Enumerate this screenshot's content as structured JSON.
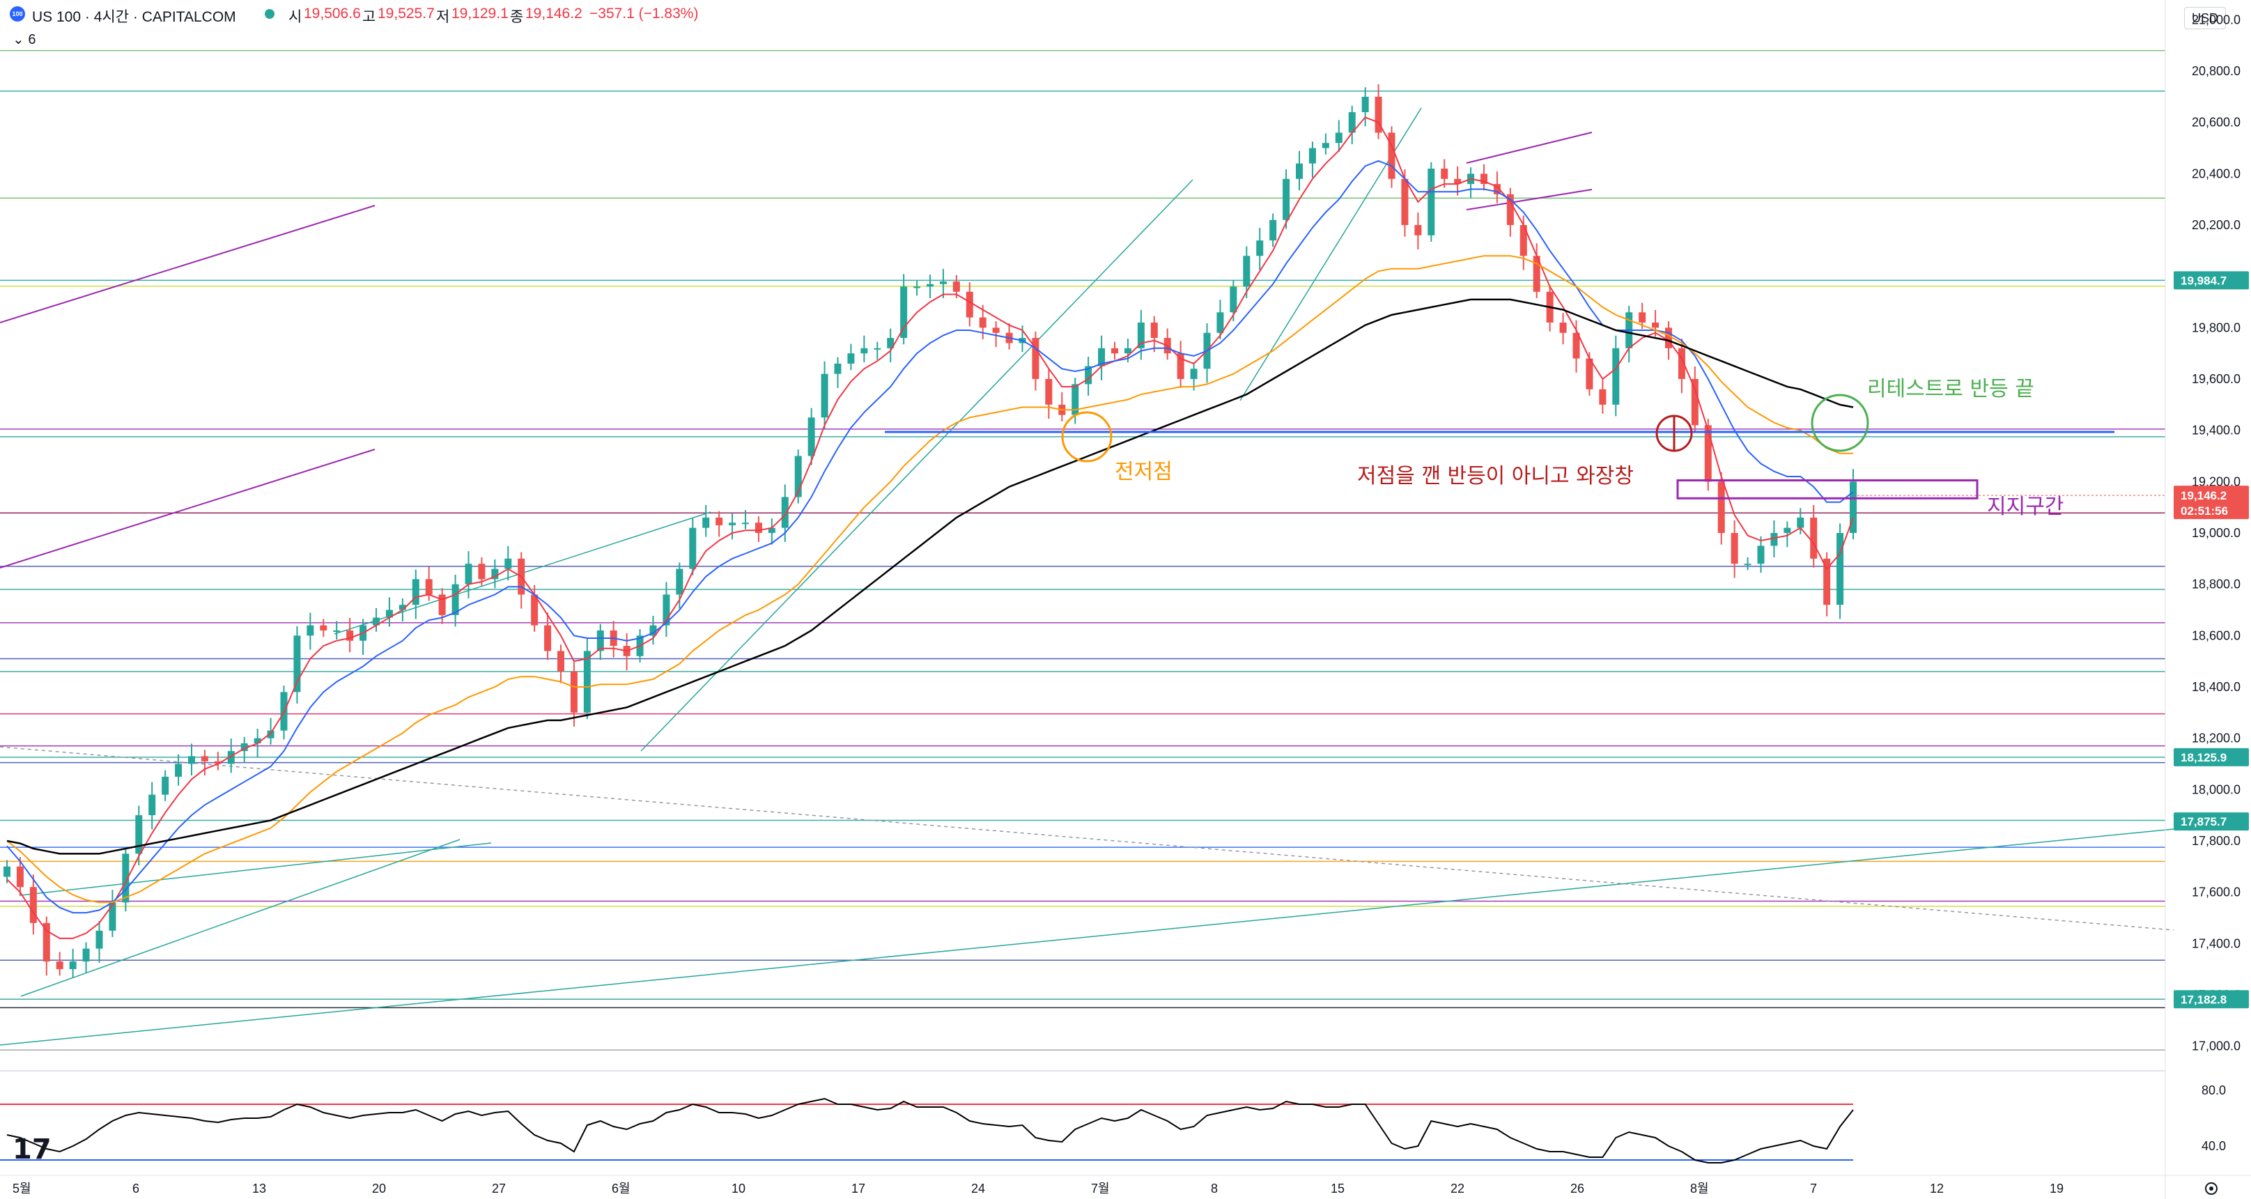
{
  "header": {
    "symbol": "US 100 · 4시간 · CAPITALCOM",
    "o_label": "시",
    "o_value": "19,506.6",
    "h_label": "고",
    "h_value": "19,525.7",
    "l_label": "저",
    "l_value": "19,129.1",
    "c_label": "종",
    "c_value": "19,146.2",
    "change": "−357.1 (−1.83%)",
    "badge": "100",
    "indicator_count": "6",
    "currency": "USD"
  },
  "colors": {
    "up": "#26a69a",
    "down": "#ef5350",
    "ema_fast": "#f23645",
    "ema_mid": "#2962ff",
    "ema_slow": "#ff9800",
    "ma_long": "#000000",
    "rsi": "#000000"
  },
  "chart_data": {
    "type": "candlestick",
    "ylim": [
      16950,
      21050
    ],
    "yticks": [
      17000,
      17200,
      17400,
      17600,
      17800,
      18000,
      18200,
      18400,
      18600,
      18800,
      19000,
      19200,
      19400,
      19600,
      19800,
      20000,
      20200,
      20400,
      20600,
      20800,
      21000
    ],
    "ytick_labels": [
      "17,000.0",
      "17,200.0",
      "17,400.0",
      "17,600.0",
      "17,800.0",
      "18,000.0",
      "18,200.0",
      "18,400.0",
      "18,600.0",
      "18,800.0",
      "19,000.0",
      "19,200.0",
      "19,400.0",
      "19,600.0",
      "19,800.0",
      "20,000.0",
      "20,200.0",
      "20,400.0",
      "20,600.0",
      "20,800.0",
      "21,000.0"
    ],
    "x_labels": [
      "5월",
      "6",
      "13",
      "20",
      "27",
      "6월",
      "10",
      "17",
      "24",
      "7월",
      "8",
      "15",
      "22",
      "26",
      "8월",
      "7",
      "12",
      "19"
    ],
    "price_closes": [
      17700,
      17620,
      17480,
      17330,
      17300,
      17330,
      17380,
      17450,
      17560,
      17750,
      17900,
      17980,
      18050,
      18100,
      18130,
      18110,
      18100,
      18150,
      18180,
      18200,
      18230,
      18380,
      18600,
      18640,
      18620,
      18620,
      18580,
      18640,
      18670,
      18700,
      18720,
      18820,
      18760,
      18680,
      18800,
      18880,
      18820,
      18860,
      18900,
      18760,
      18640,
      18540,
      18460,
      18300,
      18540,
      18620,
      18560,
      18520,
      18600,
      18640,
      18760,
      18860,
      19020,
      19060,
      19030,
      19040,
      19040,
      19000,
      19020,
      19140,
      19300,
      19450,
      19620,
      19660,
      19700,
      19720,
      19720,
      19760,
      19960,
      19960,
      19970,
      19980,
      19940,
      19840,
      19800,
      19780,
      19740,
      19760,
      19600,
      19500,
      19460,
      19580,
      19650,
      19720,
      19700,
      19720,
      19820,
      19760,
      19700,
      19600,
      19640,
      19780,
      19860,
      19960,
      20080,
      20140,
      20220,
      20380,
      20440,
      20500,
      20520,
      20560,
      20640,
      20700,
      20560,
      20380,
      20200,
      20160,
      20420,
      20380,
      20360,
      20400,
      20360,
      20320,
      20200,
      20080,
      19940,
      19820,
      19780,
      19680,
      19560,
      19500,
      19720,
      19860,
      19820,
      19800,
      19720,
      19600,
      19420,
      19200,
      19000,
      18880,
      18880,
      18950,
      19000,
      19020,
      19060,
      18900,
      18720,
      19000,
      19200
    ],
    "ema_fast": [
      17650,
      17600,
      17520,
      17450,
      17420,
      17420,
      17440,
      17480,
      17550,
      17640,
      17740,
      17830,
      17910,
      17980,
      18040,
      18080,
      18100,
      18130,
      18160,
      18180,
      18220,
      18300,
      18420,
      18510,
      18560,
      18580,
      18590,
      18610,
      18640,
      18670,
      18700,
      18750,
      18760,
      18740,
      18760,
      18800,
      18810,
      18830,
      18860,
      18830,
      18760,
      18680,
      18600,
      18500,
      18510,
      18550,
      18550,
      18540,
      18560,
      18590,
      18660,
      18740,
      18850,
      18930,
      18970,
      19000,
      19010,
      19010,
      19020,
      19070,
      19160,
      19280,
      19420,
      19520,
      19590,
      19640,
      19670,
      19710,
      19800,
      19860,
      19900,
      19930,
      19930,
      19900,
      19870,
      19840,
      19810,
      19790,
      19720,
      19640,
      19570,
      19570,
      19600,
      19650,
      19670,
      19690,
      19740,
      19750,
      19730,
      19680,
      19660,
      19710,
      19770,
      19850,
      19940,
      20020,
      20100,
      20210,
      20300,
      20380,
      20440,
      20490,
      20560,
      20620,
      20600,
      20510,
      20380,
      20290,
      20340,
      20360,
      20360,
      20380,
      20370,
      20350,
      20290,
      20200,
      20080,
      19960,
      19880,
      19790,
      19680,
      19600,
      19640,
      19720,
      19760,
      19780,
      19750,
      19680,
      19560,
      19400,
      19220,
      19070,
      18990,
      18970,
      18980,
      18990,
      19020,
      18960,
      18860,
      18920,
      19060
    ],
    "ema_mid": [
      17780,
      17720,
      17650,
      17580,
      17540,
      17520,
      17520,
      17530,
      17560,
      17610,
      17670,
      17730,
      17790,
      17850,
      17900,
      17940,
      17970,
      18000,
      18030,
      18060,
      18090,
      18150,
      18240,
      18320,
      18380,
      18420,
      18450,
      18480,
      18520,
      18550,
      18580,
      18630,
      18660,
      18670,
      18690,
      18720,
      18740,
      18760,
      18790,
      18790,
      18760,
      18720,
      18670,
      18600,
      18590,
      18590,
      18590,
      18580,
      18590,
      18610,
      18650,
      18700,
      18770,
      18830,
      18870,
      18900,
      18920,
      18940,
      18960,
      19000,
      19060,
      19140,
      19240,
      19330,
      19410,
      19470,
      19520,
      19570,
      19640,
      19700,
      19740,
      19770,
      19790,
      19790,
      19780,
      19770,
      19760,
      19750,
      19720,
      19680,
      19640,
      19630,
      19640,
      19660,
      19670,
      19680,
      19710,
      19720,
      19720,
      19700,
      19690,
      19710,
      19740,
      19790,
      19850,
      19910,
      19970,
      20050,
      20120,
      20190,
      20250,
      20300,
      20370,
      20430,
      20450,
      20430,
      20380,
      20330,
      20330,
      20330,
      20330,
      20340,
      20340,
      20330,
      20300,
      20250,
      20180,
      20100,
      20030,
      19960,
      19880,
      19810,
      19790,
      19790,
      19790,
      19790,
      19780,
      19750,
      19690,
      19600,
      19500,
      19400,
      19320,
      19270,
      19240,
      19220,
      19220,
      19180,
      19120,
      19120,
      19160
    ],
    "ema_slow": [
      17800,
      17760,
      17710,
      17660,
      17620,
      17590,
      17570,
      17560,
      17560,
      17580,
      17600,
      17630,
      17660,
      17690,
      17720,
      17750,
      17770,
      17790,
      17810,
      17830,
      17850,
      17890,
      17940,
      17990,
      18030,
      18070,
      18100,
      18130,
      18160,
      18190,
      18220,
      18260,
      18290,
      18310,
      18330,
      18360,
      18380,
      18400,
      18430,
      18440,
      18440,
      18430,
      18420,
      18400,
      18400,
      18410,
      18410,
      18410,
      18420,
      18430,
      18460,
      18490,
      18540,
      18580,
      18620,
      18650,
      18680,
      18700,
      18730,
      18760,
      18800,
      18860,
      18920,
      18980,
      19040,
      19100,
      19150,
      19200,
      19260,
      19310,
      19360,
      19400,
      19430,
      19450,
      19460,
      19470,
      19480,
      19490,
      19490,
      19490,
      19480,
      19480,
      19490,
      19500,
      19510,
      19520,
      19540,
      19550,
      19560,
      19570,
      19570,
      19580,
      19600,
      19620,
      19650,
      19680,
      19710,
      19750,
      19790,
      19830,
      19870,
      19910,
      19950,
      19990,
      20020,
      20030,
      20030,
      20030,
      20040,
      20050,
      20060,
      20070,
      20080,
      20080,
      20080,
      20070,
      20050,
      20020,
      19990,
      19960,
      19920,
      19880,
      19850,
      19830,
      19810,
      19790,
      19770,
      19740,
      19700,
      19650,
      19590,
      19540,
      19490,
      19460,
      19430,
      19410,
      19400,
      19370,
      19330,
      19310,
      19310
    ],
    "ma_long": [
      17800,
      17790,
      17770,
      17760,
      17750,
      17750,
      17750,
      17750,
      17760,
      17770,
      17780,
      17790,
      17800,
      17810,
      17820,
      17830,
      17840,
      17850,
      17860,
      17870,
      17880,
      17900,
      17920,
      17940,
      17960,
      17980,
      18000,
      18020,
      18040,
      18060,
      18080,
      18100,
      18120,
      18140,
      18160,
      18180,
      18200,
      18220,
      18240,
      18250,
      18260,
      18270,
      18270,
      18280,
      18290,
      18300,
      18310,
      18320,
      18340,
      18360,
      18380,
      18400,
      18420,
      18440,
      18460,
      18480,
      18500,
      18520,
      18540,
      18560,
      18590,
      18620,
      18660,
      18700,
      18740,
      18780,
      18820,
      18860,
      18900,
      18940,
      18980,
      19020,
      19060,
      19090,
      19120,
      19150,
      19180,
      19200,
      19220,
      19240,
      19260,
      19280,
      19300,
      19320,
      19340,
      19360,
      19380,
      19400,
      19420,
      19440,
      19460,
      19480,
      19500,
      19520,
      19540,
      19570,
      19600,
      19630,
      19660,
      19690,
      19720,
      19750,
      19780,
      19810,
      19830,
      19850,
      19860,
      19870,
      19880,
      19890,
      19900,
      19910,
      19910,
      19910,
      19910,
      19900,
      19890,
      19880,
      19870,
      19850,
      19830,
      19810,
      19790,
      19780,
      19770,
      19760,
      19750,
      19730,
      19710,
      19690,
      19670,
      19650,
      19630,
      19610,
      19590,
      19570,
      19560,
      19540,
      19520,
      19500,
      19490
    ],
    "rsi_ylim": [
      20,
      90
    ],
    "rsi_ticks": [
      40,
      80
    ],
    "rsi_tick_labels": [
      "40.0",
      "80.0"
    ],
    "rsi_levels": [
      70,
      30
    ],
    "rsi_values": [
      48,
      46,
      42,
      38,
      36,
      40,
      45,
      52,
      58,
      62,
      64,
      63,
      62,
      61,
      60,
      58,
      57,
      59,
      60,
      60,
      61,
      66,
      70,
      68,
      64,
      62,
      60,
      62,
      63,
      64,
      64,
      66,
      62,
      58,
      63,
      65,
      62,
      64,
      65,
      56,
      48,
      44,
      42,
      36,
      55,
      58,
      54,
      52,
      56,
      58,
      64,
      66,
      70,
      68,
      64,
      64,
      63,
      60,
      62,
      66,
      70,
      72,
      74,
      70,
      70,
      68,
      66,
      67,
      72,
      68,
      68,
      68,
      64,
      58,
      56,
      55,
      54,
      55,
      46,
      44,
      43,
      52,
      56,
      60,
      58,
      60,
      66,
      62,
      58,
      52,
      54,
      62,
      64,
      66,
      68,
      66,
      67,
      72,
      70,
      70,
      68,
      68,
      70,
      70,
      56,
      42,
      38,
      40,
      58,
      56,
      54,
      56,
      54,
      52,
      46,
      42,
      38,
      36,
      36,
      34,
      32,
      32,
      46,
      50,
      48,
      46,
      40,
      36,
      30,
      28,
      28,
      30,
      34,
      38,
      40,
      42,
      44,
      40,
      38,
      54,
      66
    ],
    "horizontal_levels": [
      {
        "value": 20880,
        "color": "#66bb6a"
      },
      {
        "value": 20722,
        "color": "#26a69a"
      },
      {
        "value": 20305,
        "color": "#66bb6a"
      },
      {
        "value": 19984.7,
        "color": "#26a69a"
      },
      {
        "value": 19962,
        "color": "#cddc39"
      },
      {
        "value": 19405,
        "color": "#9c27b0"
      },
      {
        "value": 19375,
        "color": "#26a69a"
      },
      {
        "value": 19078,
        "color": "#880e4f"
      },
      {
        "value": 18870,
        "color": "#3f51b5"
      },
      {
        "value": 18780,
        "color": "#26a69a"
      },
      {
        "value": 18650,
        "color": "#9c27b0"
      },
      {
        "value": 18510,
        "color": "#3f51b5"
      },
      {
        "value": 18460,
        "color": "#26a69a"
      },
      {
        "value": 18295,
        "color": "#e91e63"
      },
      {
        "value": 18170,
        "color": "#9c27b0"
      },
      {
        "value": 18125.9,
        "color": "#26a69a"
      },
      {
        "value": 18105,
        "color": "#3f51b5"
      },
      {
        "value": 17880,
        "color": "#26a69a"
      },
      {
        "value": 17775,
        "color": "#2962ff"
      },
      {
        "value": 17720,
        "color": "#ff9800"
      },
      {
        "value": 17565,
        "color": "#9c27b0"
      },
      {
        "value": 17545,
        "color": "#cddc39"
      },
      {
        "value": 17335,
        "color": "#3f51b5"
      },
      {
        "value": 17182.8,
        "color": "#26a69a"
      },
      {
        "value": 17150,
        "color": "#131722"
      },
      {
        "value": 16985,
        "color": "#9e9e9e"
      }
    ],
    "price_boxes": [
      {
        "label": "19,984.7",
        "value": 19984.7,
        "color": "#26a69a"
      },
      {
        "label": "18,125.9",
        "value": 18125.9,
        "color": "#26a69a"
      },
      {
        "label": "17,875.7",
        "value": 17875.7,
        "color": "#26a69a"
      },
      {
        "label": "17,182.8",
        "value": 17182.8,
        "color": "#26a69a"
      }
    ],
    "current_price": {
      "label": "19,146.2",
      "countdown": "02:51:56",
      "value": 19146.2,
      "color": "#ef5350"
    },
    "support_zone": {
      "low": 19135,
      "high": 19205
    }
  },
  "annotations": {
    "prev_low": "전저점",
    "not_rebound": "저점을 깬 반등이 아니고 와장창",
    "retest_end": "리테스트로 반등 끝",
    "support": "지지구간"
  }
}
